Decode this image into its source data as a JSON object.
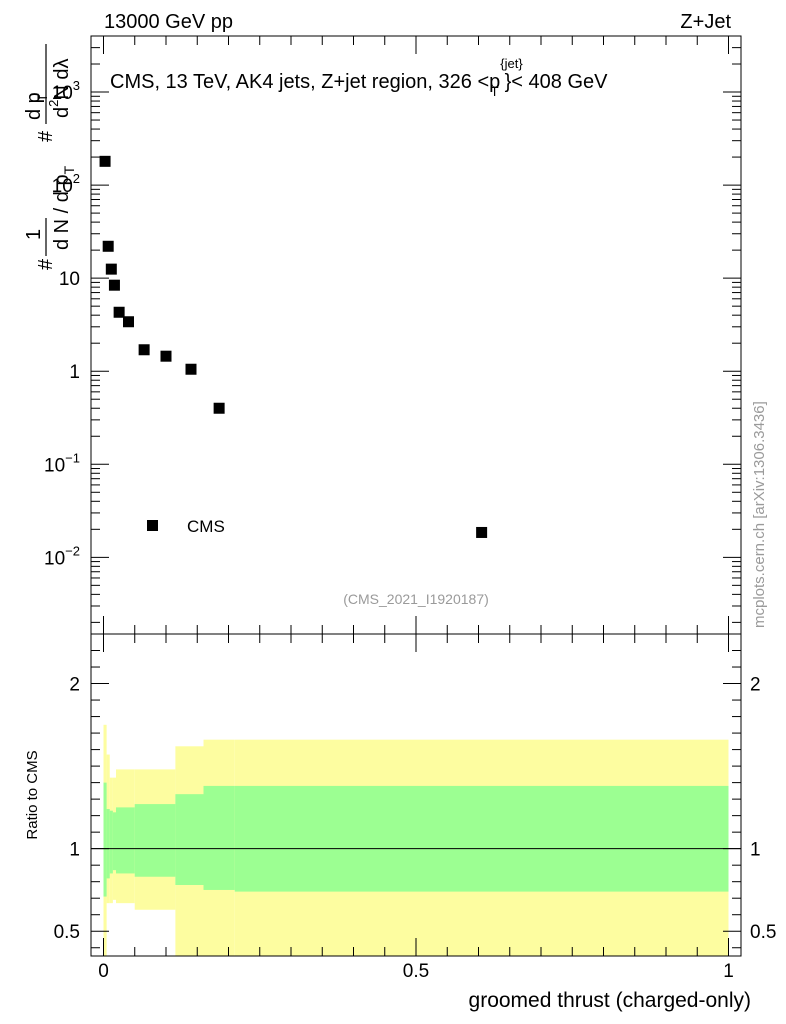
{
  "header": {
    "left": "13000 GeV pp",
    "right": "Z+Jet"
  },
  "chart_data": [
    {
      "type": "scatter",
      "title_parts": [
        "CMS, 13 TeV, AK4 jets, Z+jet region, 326 <p",
        "{jet}",
        "T",
        "}< 408 GeV"
      ],
      "ylabel_parts": [
        "#",
        "1",
        "d N / d p",
        "T",
        "#",
        "d p",
        "T",
        "d",
        "2",
        "N",
        " dλ"
      ],
      "yscale": "log",
      "ylim": [
        0.0015,
        4000
      ],
      "xlim": [
        -0.02,
        1.02
      ],
      "yticks": [
        {
          "value": 0.01,
          "base": "10",
          "exp": "−2"
        },
        {
          "value": 0.1,
          "base": "10",
          "exp": "−1"
        },
        {
          "value": 1,
          "base": "1",
          "exp": ""
        },
        {
          "value": 10,
          "base": "10",
          "exp": ""
        },
        {
          "value": 100,
          "base": "10",
          "exp": "2"
        },
        {
          "value": 1000,
          "base": "10",
          "exp": "3"
        }
      ],
      "series": [
        {
          "name": "CMS",
          "marker": "square",
          "x": [
            0.0025,
            0.0075,
            0.0125,
            0.0175,
            0.025,
            0.04,
            0.065,
            0.1,
            0.14,
            0.185,
            0.605
          ],
          "y": [
            180,
            22,
            12.5,
            8.4,
            4.3,
            3.4,
            1.7,
            1.45,
            1.05,
            0.4,
            0.0185
          ]
        }
      ],
      "legend": {
        "entry": "CMS",
        "position": "middle-left"
      },
      "annotation": "(CMS_2021_I1920187)",
      "watermark": "mcplots.cern.ch [arXiv:1306.3436]"
    },
    {
      "type": "area",
      "ylabel": "Ratio to CMS",
      "xlabel": "groomed thrust (charged-only)",
      "xlim": [
        -0.02,
        1.02
      ],
      "ylim": [
        0.35,
        2.3
      ],
      "yticks": [
        {
          "value": 0.5,
          "label": "0.5"
        },
        {
          "value": 1,
          "label": "1"
        },
        {
          "value": 2,
          "label": "2"
        }
      ],
      "xticks": [
        {
          "value": 0,
          "label": "0"
        },
        {
          "value": 0.5,
          "label": "0.5"
        },
        {
          "value": 1,
          "label": "1"
        }
      ],
      "reference_line": 1,
      "bands": {
        "edges": [
          0,
          0.005,
          0.01,
          0.015,
          0.02,
          0.05,
          0.115,
          0.16,
          0.21,
          1.0
        ],
        "inner_hi": [
          1.4,
          1.24,
          1.23,
          1.22,
          1.25,
          1.27,
          1.33,
          1.38,
          1.38
        ],
        "inner_lo": [
          0.71,
          0.82,
          0.85,
          0.87,
          0.85,
          0.83,
          0.78,
          0.75,
          0.74
        ],
        "outer_hi": [
          1.75,
          1.57,
          1.43,
          1.43,
          1.48,
          1.48,
          1.62,
          1.66,
          1.66
        ],
        "outer_lo": [
          0.35,
          0.67,
          0.67,
          0.69,
          0.67,
          0.63,
          0.35,
          0.35,
          0.35
        ],
        "inner_color": "#9cff92",
        "outer_color": "#fdfda0"
      }
    }
  ]
}
